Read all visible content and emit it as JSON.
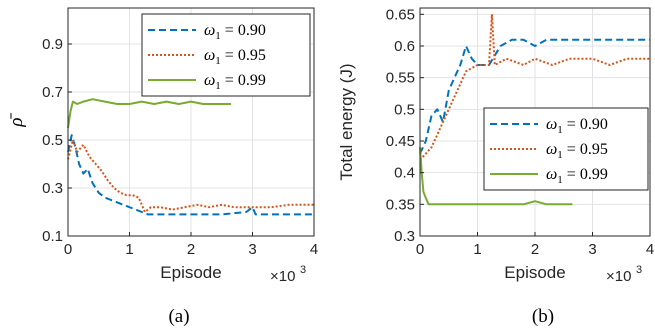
{
  "chart_data": [
    {
      "type": "line",
      "panel_label": "(a)",
      "xlabel": "Episode",
      "x_multiplier": "×10",
      "x_multiplier_exp": "3",
      "ylabel": "ρ̄",
      "xlim": [
        0,
        4000
      ],
      "ylim": [
        0.1,
        1.05
      ],
      "xticks": [
        0,
        1,
        2,
        3,
        4
      ],
      "yticks": [
        0.1,
        0.3,
        0.5,
        0.7,
        0.9
      ],
      "ytick_labels": [
        "0.1",
        "0.3",
        "0.5",
        "0.7",
        "0.9"
      ],
      "grid": true,
      "legend_position": "top-right",
      "series": [
        {
          "name": "ω1 = 0.90",
          "legend_prefix": "ω",
          "legend_sub": "1",
          "legend_val": " = 0.90",
          "color": "#0072BD",
          "dash": "7,4",
          "points": [
            [
              0,
              0.45
            ],
            [
              60,
              0.52
            ],
            [
              120,
              0.47
            ],
            [
              180,
              0.4
            ],
            [
              250,
              0.36
            ],
            [
              320,
              0.38
            ],
            [
              400,
              0.32
            ],
            [
              500,
              0.28
            ],
            [
              600,
              0.26
            ],
            [
              700,
              0.25
            ],
            [
              800,
              0.24
            ],
            [
              900,
              0.23
            ],
            [
              1000,
              0.22
            ],
            [
              1100,
              0.21
            ],
            [
              1200,
              0.2
            ],
            [
              1300,
              0.19
            ],
            [
              1500,
              0.19
            ],
            [
              2000,
              0.19
            ],
            [
              2500,
              0.19
            ],
            [
              2900,
              0.2
            ],
            [
              3000,
              0.22
            ],
            [
              3050,
              0.19
            ],
            [
              3500,
              0.19
            ],
            [
              4000,
              0.19
            ]
          ]
        },
        {
          "name": "ω1 = 0.95",
          "legend_prefix": "ω",
          "legend_sub": "1",
          "legend_val": " = 0.95",
          "color": "#D95319",
          "dash": "2,2",
          "points": [
            [
              0,
              0.42
            ],
            [
              80,
              0.5
            ],
            [
              150,
              0.45
            ],
            [
              250,
              0.48
            ],
            [
              350,
              0.43
            ],
            [
              450,
              0.4
            ],
            [
              550,
              0.37
            ],
            [
              650,
              0.33
            ],
            [
              750,
              0.3
            ],
            [
              850,
              0.28
            ],
            [
              950,
              0.27
            ],
            [
              1050,
              0.27
            ],
            [
              1150,
              0.26
            ],
            [
              1250,
              0.2
            ],
            [
              1350,
              0.22
            ],
            [
              1500,
              0.22
            ],
            [
              1700,
              0.21
            ],
            [
              1900,
              0.22
            ],
            [
              2100,
              0.23
            ],
            [
              2300,
              0.22
            ],
            [
              2500,
              0.23
            ],
            [
              2700,
              0.22
            ],
            [
              3000,
              0.22
            ],
            [
              3300,
              0.22
            ],
            [
              3600,
              0.23
            ],
            [
              4000,
              0.23
            ]
          ]
        },
        {
          "name": "ω1 = 0.99",
          "legend_prefix": "ω",
          "legend_sub": "1",
          "legend_val": " = 0.99",
          "color": "#77AC30",
          "dash": "",
          "points": [
            [
              0,
              0.55
            ],
            [
              40,
              0.62
            ],
            [
              80,
              0.66
            ],
            [
              150,
              0.65
            ],
            [
              250,
              0.66
            ],
            [
              400,
              0.67
            ],
            [
              600,
              0.66
            ],
            [
              800,
              0.65
            ],
            [
              1000,
              0.65
            ],
            [
              1200,
              0.66
            ],
            [
              1400,
              0.65
            ],
            [
              1600,
              0.66
            ],
            [
              1800,
              0.65
            ],
            [
              2000,
              0.66
            ],
            [
              2200,
              0.65
            ],
            [
              2400,
              0.65
            ],
            [
              2650,
              0.65
            ]
          ]
        }
      ]
    },
    {
      "type": "line",
      "panel_label": "(b)",
      "xlabel": "Episode",
      "x_multiplier": "×10",
      "x_multiplier_exp": "3",
      "ylabel": "Total energy (J)",
      "xlim": [
        0,
        4000
      ],
      "ylim": [
        0.3,
        0.66
      ],
      "xticks": [
        0,
        1,
        2,
        3,
        4
      ],
      "yticks": [
        0.3,
        0.35,
        0.4,
        0.45,
        0.5,
        0.55,
        0.6,
        0.65
      ],
      "ytick_labels": [
        "0.3",
        "0.35",
        "0.4",
        "0.45",
        "0.5",
        "0.55",
        "0.6",
        "0.65"
      ],
      "grid": true,
      "legend_position": "center-right",
      "series": [
        {
          "name": "ω1 = 0.90",
          "legend_prefix": "ω",
          "legend_sub": "1",
          "legend_val": " = 0.90",
          "color": "#0072BD",
          "dash": "7,4",
          "points": [
            [
              0,
              0.43
            ],
            [
              100,
              0.45
            ],
            [
              200,
              0.49
            ],
            [
              300,
              0.5
            ],
            [
              400,
              0.48
            ],
            [
              500,
              0.53
            ],
            [
              600,
              0.55
            ],
            [
              700,
              0.57
            ],
            [
              800,
              0.6
            ],
            [
              900,
              0.58
            ],
            [
              1000,
              0.57
            ],
            [
              1200,
              0.57
            ],
            [
              1400,
              0.6
            ],
            [
              1600,
              0.61
            ],
            [
              1800,
              0.61
            ],
            [
              2000,
              0.6
            ],
            [
              2200,
              0.61
            ],
            [
              2500,
              0.61
            ],
            [
              2800,
              0.61
            ],
            [
              3000,
              0.61
            ],
            [
              3200,
              0.61
            ],
            [
              3500,
              0.61
            ],
            [
              3800,
              0.61
            ],
            [
              4000,
              0.61
            ]
          ]
        },
        {
          "name": "ω1 = 0.95",
          "legend_prefix": "ω",
          "legend_sub": "1",
          "legend_val": " = 0.95",
          "color": "#D95319",
          "dash": "2,2",
          "points": [
            [
              0,
              0.42
            ],
            [
              100,
              0.43
            ],
            [
              200,
              0.44
            ],
            [
              300,
              0.46
            ],
            [
              400,
              0.48
            ],
            [
              500,
              0.5
            ],
            [
              600,
              0.52
            ],
            [
              700,
              0.54
            ],
            [
              800,
              0.56
            ],
            [
              1000,
              0.57
            ],
            [
              1200,
              0.57
            ],
            [
              1250,
              0.65
            ],
            [
              1300,
              0.57
            ],
            [
              1500,
              0.58
            ],
            [
              1800,
              0.57
            ],
            [
              2000,
              0.58
            ],
            [
              2300,
              0.57
            ],
            [
              2600,
              0.58
            ],
            [
              3000,
              0.58
            ],
            [
              3300,
              0.57
            ],
            [
              3600,
              0.58
            ],
            [
              3900,
              0.58
            ],
            [
              4000,
              0.58
            ]
          ]
        },
        {
          "name": "ω1 = 0.99",
          "legend_prefix": "ω",
          "legend_sub": "1",
          "legend_val": " = 0.99",
          "color": "#77AC30",
          "dash": "",
          "points": [
            [
              0,
              0.44
            ],
            [
              30,
              0.4
            ],
            [
              60,
              0.37
            ],
            [
              100,
              0.36
            ],
            [
              150,
              0.35
            ],
            [
              250,
              0.35
            ],
            [
              400,
              0.35
            ],
            [
              600,
              0.35
            ],
            [
              800,
              0.35
            ],
            [
              1000,
              0.35
            ],
            [
              1200,
              0.35
            ],
            [
              1400,
              0.35
            ],
            [
              1600,
              0.35
            ],
            [
              1800,
              0.35
            ],
            [
              2000,
              0.355
            ],
            [
              2200,
              0.35
            ],
            [
              2400,
              0.35
            ],
            [
              2650,
              0.35
            ]
          ]
        }
      ]
    }
  ]
}
